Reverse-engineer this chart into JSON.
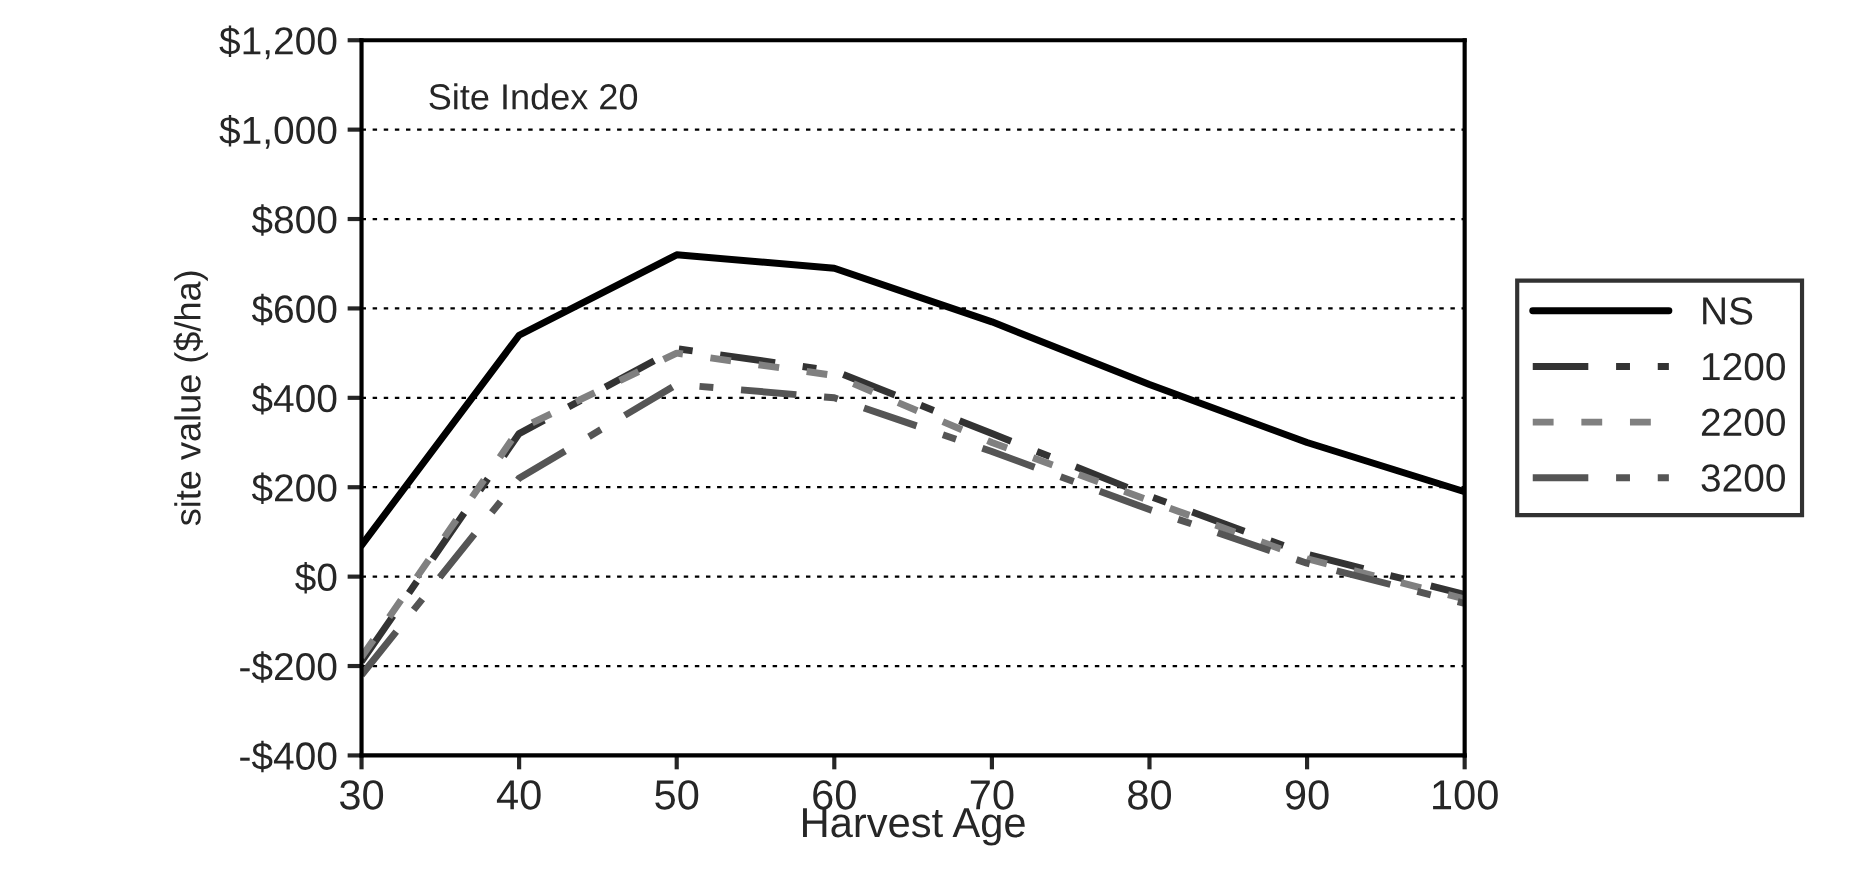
{
  "chart_data": {
    "type": "line",
    "xlabel": "Harvest Age",
    "ylabel": "site value ($/ha)",
    "annotations": [
      "Site Index 20"
    ],
    "x": [
      30,
      40,
      50,
      60,
      70,
      80,
      90,
      100
    ],
    "series": [
      {
        "name": "NS",
        "color": "#000000",
        "line_style": "solid",
        "values": [
          70,
          540,
          720,
          690,
          570,
          430,
          300,
          190
        ]
      },
      {
        "name": "1200",
        "color": "#333333",
        "line_style": "dashed",
        "values": [
          -190,
          320,
          510,
          460,
          320,
          180,
          50,
          -40
        ]
      },
      {
        "name": "2200",
        "color": "#808080",
        "line_style": "dotted",
        "values": [
          -180,
          330,
          500,
          450,
          300,
          170,
          40,
          -50
        ]
      },
      {
        "name": "3200",
        "color": "#555555",
        "line_style": "dashed",
        "values": [
          -220,
          220,
          430,
          400,
          280,
          150,
          30,
          -60
        ]
      }
    ],
    "xlim": [
      30,
      100
    ],
    "xticks": [
      30,
      40,
      50,
      60,
      70,
      80,
      90,
      100
    ],
    "ylim": [
      -400,
      1200
    ],
    "yticks": [
      {
        "value": -400,
        "label": "-$400"
      },
      {
        "value": -200,
        "label": "-$200"
      },
      {
        "value": 0,
        "label": "$0"
      },
      {
        "value": 200,
        "label": "$200"
      },
      {
        "value": 400,
        "label": "$400"
      },
      {
        "value": 600,
        "label": "$600"
      },
      {
        "value": 800,
        "label": "$800"
      },
      {
        "value": 1000,
        "label": "$1,000"
      },
      {
        "value": 1200,
        "label": "$1,200"
      }
    ],
    "grid": "y",
    "legend": "right",
    "marker": "none"
  }
}
